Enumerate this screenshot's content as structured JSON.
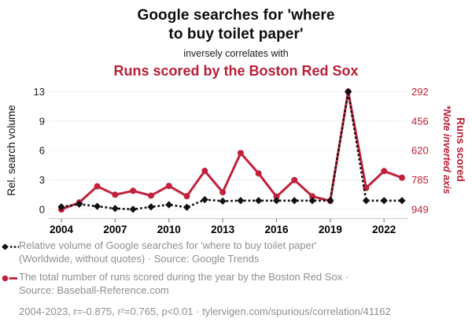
{
  "header": {
    "title_line1": "Google searches for 'where",
    "title_line2": "to buy toilet paper'",
    "subtitle": "inversely correlates with",
    "title_red": "Runs scored by the Boston Red Sox"
  },
  "colors": {
    "accent_red": "#b91f36",
    "line_red": "#c2213c",
    "series_black": "#111111",
    "grid": "#f0f0f0",
    "axis_line": "#cfcfcf",
    "tick_mark": "#999999",
    "legend_gray": "#8f8f8f"
  },
  "chart_data": {
    "type": "line",
    "x": [
      2004,
      2005,
      2006,
      2007,
      2008,
      2009,
      2010,
      2011,
      2012,
      2013,
      2014,
      2015,
      2016,
      2017,
      2018,
      2019,
      2020,
      2021,
      2022,
      2023
    ],
    "x_tick_labels": [
      "2004",
      "2007",
      "2010",
      "2013",
      "2016",
      "2019",
      "2022"
    ],
    "x_tick_indices": [
      0,
      3,
      6,
      9,
      12,
      15,
      18
    ],
    "series": [
      {
        "name": "Relative volume of Google searches for 'where to buy toilet paper'",
        "axis": "left",
        "style": "dashed-diamond",
        "color": "#111111",
        "values": [
          0.26,
          0.54,
          0.32,
          0.1,
          0.02,
          0.26,
          0.48,
          0.22,
          1.0,
          0.85,
          0.9,
          0.9,
          0.9,
          0.9,
          0.9,
          0.9,
          13,
          0.9,
          0.9,
          0.9
        ]
      },
      {
        "name": "The total number of runs scored during the year by the Boston Red Sox",
        "axis": "right",
        "style": "solid-circle",
        "color": "#c2213c",
        "values": [
          949,
          910,
          820,
          867,
          845,
          872,
          818,
          875,
          734,
          853,
          634,
          748,
          878,
          785,
          876,
          901,
          292,
          829,
          735,
          772
        ]
      }
    ],
    "left_axis": {
      "label": "Rel. search volume",
      "ticks": [
        0,
        3,
        6,
        9,
        13
      ]
    },
    "right_axis": {
      "label": "Runs scored",
      "note": "*Note inverted axis",
      "ticks": [
        292,
        456,
        620,
        785,
        949
      ],
      "inverted": true
    },
    "grid": "horizontal",
    "legend_position": "below"
  },
  "legend": [
    {
      "marker": "black-diamond-dotted",
      "label_line1": "Relative volume of Google searches for 'where to buy toilet paper'",
      "label_line2": "(Worldwide, without quotes) · Source: Google Trends"
    },
    {
      "marker": "red-circle-solid",
      "label_line1": "The total number of runs scored during the year by the Boston Red Sox ·",
      "label_line2": "Source: Baseball-Reference.com"
    }
  ],
  "stats_line": "2004-2023, r=-0.875, r²=0.765, p<0.01 · tylervigen.com/spurious/correlation/41162"
}
